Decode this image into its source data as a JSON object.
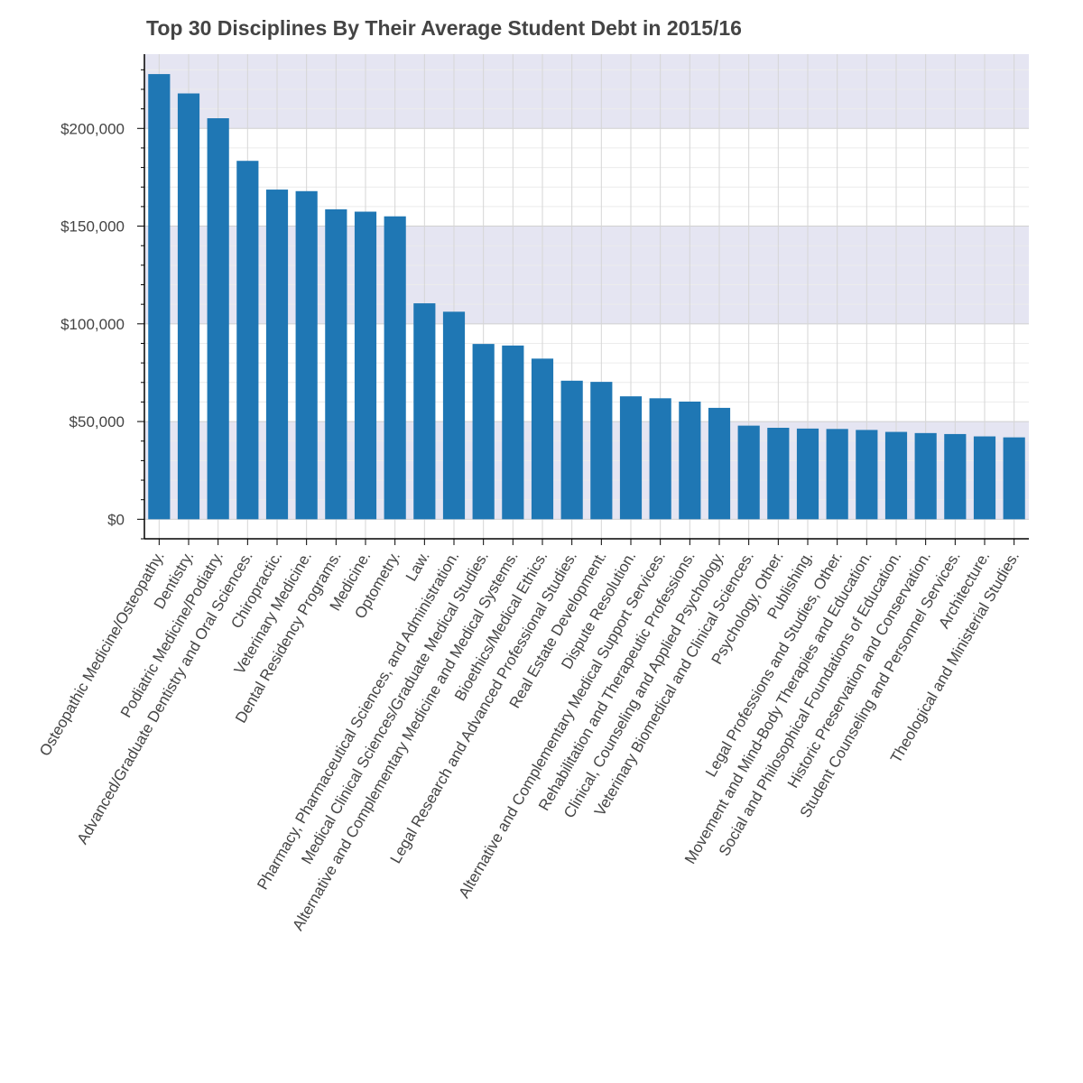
{
  "chart_data": {
    "type": "bar",
    "title": "Top 30 Disciplines By Their Average Student Debt in 2015/16",
    "xlabel": "",
    "ylabel": "",
    "ylim": [
      -10000,
      238000
    ],
    "yticks": [
      0,
      50000,
      100000,
      150000,
      200000
    ],
    "ytick_labels": [
      "$0",
      "$50,000",
      "$100,000",
      "$150,000",
      "$200,000"
    ],
    "grid": true,
    "bar_color": "#1f77b4",
    "band_color": "#e5e5f2",
    "bands": [
      [
        0,
        50000
      ],
      [
        100000,
        150000
      ],
      [
        200000,
        238000
      ]
    ],
    "categories": [
      "Osteopathic Medicine/Osteopathy.",
      "Dentistry.",
      "Podiatric Medicine/Podiatry.",
      "Advanced/Graduate Dentistry and Oral Sciences.",
      "Chiropractic.",
      "Veterinary Medicine.",
      "Dental Residency Programs.",
      "Medicine.",
      "Optometry.",
      "Law.",
      "Pharmacy, Pharmaceutical Sciences, and Administration.",
      "Medical Clinical Sciences/Graduate Medical Studies.",
      "Alternative and Complementary Medicine and Medical Systems.",
      "Bioethics/Medical Ethics.",
      "Legal Research and Advanced Professional Studies.",
      "Real Estate Development.",
      "Dispute Resolution.",
      "Alternative and Complementary Medical Support Services.",
      "Rehabilitation and Therapeutic Professions.",
      "Clinical, Counseling and Applied Psychology.",
      "Veterinary Biomedical and Clinical Sciences.",
      "Psychology, Other.",
      "Publishing.",
      "Legal Professions and Studies, Other.",
      "Movement and Mind-Body Therapies and Education.",
      "Social and Philosophical Foundations of Education.",
      "Historic Preservation and Conservation.",
      "Student Counseling and Personnel Services.",
      "Architecture.",
      "Theological and Ministerial Studies."
    ],
    "values": [
      227800,
      217900,
      205200,
      183400,
      168700,
      167900,
      158600,
      157400,
      155000,
      110500,
      106200,
      89700,
      88900,
      82200,
      70900,
      70300,
      62900,
      61900,
      60200,
      57000,
      47900,
      46800,
      46400,
      46200,
      45700,
      44700,
      44100,
      43600,
      42400,
      41900
    ]
  }
}
